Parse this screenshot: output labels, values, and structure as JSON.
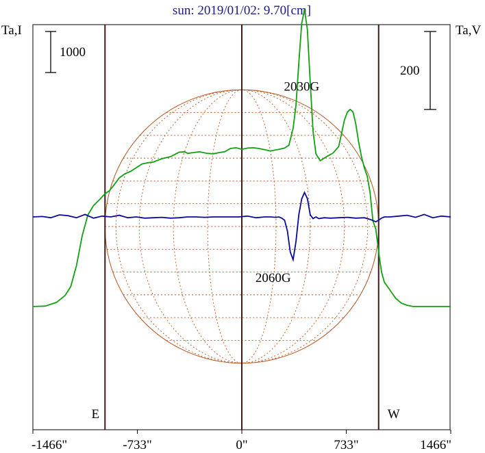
{
  "chart_data": {
    "type": "line",
    "title": "sun: 2019/01/02: 9.70[cm]",
    "left_axis_label": "Ta,I",
    "right_axis_label": "Ta,V",
    "left_scale_bar": "1000",
    "right_scale_bar": "200",
    "x_unit": "arcsec",
    "xlim": [
      -1466,
      1466
    ],
    "x_tick_labels": [
      "-1466\"",
      "-733\"",
      "0\"",
      "733\"",
      "1466\""
    ],
    "x_ticks": [
      -1466,
      -733,
      0,
      733,
      1466
    ],
    "limb_labels": [
      "E",
      "W"
    ],
    "annotations": [
      {
        "text": "2030G",
        "x": 420,
        "y": 0.62
      },
      {
        "text": "2060G",
        "x": 220,
        "y": -0.32
      }
    ],
    "grid": false,
    "colors": {
      "stokes_i": "#11a011",
      "stokes_v": "#0a0a96",
      "disk": "#b5531c",
      "vertical_lines": "#3c1a1a",
      "title": "#1a1a80",
      "text": "#000000"
    },
    "series": [
      {
        "name": "I",
        "axis": "left",
        "x": [
          -1466,
          -1380,
          -1300,
          -1240,
          -1200,
          -1160,
          -1120,
          -1080,
          -1040,
          -1000,
          -960,
          -930,
          -900,
          -860,
          -820,
          -780,
          -740,
          -700,
          -660,
          -620,
          -560,
          -500,
          -440,
          -400,
          -380,
          -340,
          -300,
          -240,
          -200,
          -160,
          -120,
          -80,
          -40,
          0,
          40,
          80,
          120,
          160,
          200,
          260,
          300,
          330,
          360,
          380,
          400,
          420,
          440,
          460,
          480,
          500,
          520,
          550,
          600,
          640,
          680,
          700,
          720,
          740,
          760,
          780,
          800,
          820,
          840,
          860,
          880,
          900,
          920,
          940,
          960,
          980,
          1000,
          1040,
          1080,
          1120,
          1160,
          1200,
          1260,
          1320,
          1400,
          1466
        ],
        "y": [
          -2.2,
          -2.19,
          -2.1,
          -1.93,
          -1.71,
          -1.19,
          -0.46,
          0.05,
          0.28,
          0.42,
          0.57,
          0.64,
          0.77,
          0.96,
          1.06,
          1.12,
          1.21,
          1.3,
          1.33,
          1.35,
          1.43,
          1.48,
          1.59,
          1.6,
          1.56,
          1.58,
          1.6,
          1.56,
          1.55,
          1.58,
          1.6,
          1.68,
          1.7,
          1.66,
          1.69,
          1.7,
          1.68,
          1.65,
          1.62,
          1.66,
          1.69,
          1.76,
          2.18,
          2.75,
          3.78,
          4.75,
          5.1,
          4.6,
          3.3,
          2.1,
          1.55,
          1.38,
          1.49,
          1.57,
          1.73,
          2.05,
          2.38,
          2.57,
          2.64,
          2.58,
          2.28,
          1.83,
          1.47,
          1.2,
          1.0,
          0.6,
          -0.1,
          -0.3,
          -0.85,
          -1.35,
          -1.6,
          -1.8,
          -2.0,
          -2.12,
          -2.17,
          -2.2,
          -2.2,
          -2.2,
          -2.2,
          -2.2
        ]
      },
      {
        "name": "V",
        "axis": "right",
        "x": [
          -1466,
          -1400,
          -1340,
          -1280,
          -1220,
          -1160,
          -1100,
          -1040,
          -980,
          -920,
          -860,
          -800,
          -740,
          -680,
          -620,
          -560,
          -500,
          -440,
          -380,
          -320,
          -260,
          -200,
          -140,
          -80,
          -20,
          40,
          100,
          160,
          200,
          240,
          260,
          280,
          300,
          320,
          340,
          360,
          380,
          400,
          420,
          440,
          460,
          480,
          500,
          520,
          540,
          580,
          620,
          680,
          740,
          800,
          860,
          900,
          940,
          960,
          980,
          1000,
          1040,
          1100,
          1160,
          1220,
          1280,
          1340,
          1400,
          1466
        ],
        "y": [
          0.0,
          0.01,
          -0.02,
          0.05,
          0.03,
          -0.02,
          0.06,
          -0.03,
          0.02,
          0.0,
          0.04,
          -0.02,
          0.0,
          -0.03,
          -0.02,
          -0.01,
          -0.03,
          -0.02,
          0.0,
          0.0,
          -0.01,
          0.0,
          0.0,
          0.0,
          0.0,
          0.02,
          -0.02,
          0.0,
          0.0,
          -0.01,
          0.0,
          -0.03,
          -0.08,
          -0.35,
          -0.86,
          -1.05,
          -0.6,
          0.05,
          0.44,
          0.6,
          0.45,
          0.05,
          -0.04,
          0.0,
          -0.04,
          -0.02,
          -0.03,
          -0.02,
          -0.01,
          -0.03,
          -0.02,
          -0.06,
          -0.12,
          -0.08,
          -0.03,
          0.0,
          0.0,
          0.02,
          0.04,
          -0.01,
          0.06,
          -0.02,
          0.02,
          0.0
        ]
      }
    ]
  }
}
